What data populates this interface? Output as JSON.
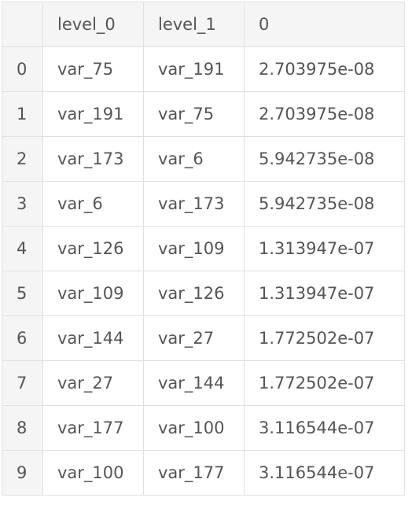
{
  "table": {
    "columns": [
      "",
      "level_0",
      "level_1",
      "0"
    ],
    "rows": [
      {
        "index": "0",
        "level_0": "var_75",
        "level_1": "var_191",
        "value": "2.703975e-08"
      },
      {
        "index": "1",
        "level_0": "var_191",
        "level_1": "var_75",
        "value": "2.703975e-08"
      },
      {
        "index": "2",
        "level_0": "var_173",
        "level_1": "var_6",
        "value": "5.942735e-08"
      },
      {
        "index": "3",
        "level_0": "var_6",
        "level_1": "var_173",
        "value": "5.942735e-08"
      },
      {
        "index": "4",
        "level_0": "var_126",
        "level_1": "var_109",
        "value": "1.313947e-07"
      },
      {
        "index": "5",
        "level_0": "var_109",
        "level_1": "var_126",
        "value": "1.313947e-07"
      },
      {
        "index": "6",
        "level_0": "var_144",
        "level_1": "var_27",
        "value": "1.772502e-07"
      },
      {
        "index": "7",
        "level_0": "var_27",
        "level_1": "var_144",
        "value": "1.772502e-07"
      },
      {
        "index": "8",
        "level_0": "var_177",
        "level_1": "var_100",
        "value": "3.116544e-07"
      },
      {
        "index": "9",
        "level_0": "var_100",
        "level_1": "var_177",
        "value": "3.116544e-07"
      }
    ]
  }
}
